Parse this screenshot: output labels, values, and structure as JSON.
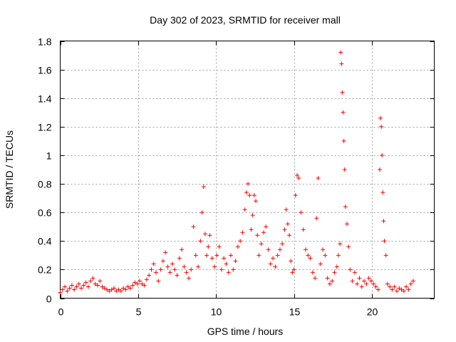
{
  "chart_data": {
    "type": "scatter",
    "title": "Day 302 of 2023, SRMTID for receiver mall",
    "xlabel": "GPS time / hours",
    "ylabel": "SRMTID / TECUs",
    "xlim": [
      0,
      24
    ],
    "ylim": [
      0,
      1.8
    ],
    "xticks": [
      0,
      5,
      10,
      15,
      20
    ],
    "xtick_labels": [
      "0",
      "5",
      "10",
      "15",
      "20"
    ],
    "yticks": [
      0,
      0.2,
      0.4,
      0.6,
      0.8,
      1.0,
      1.2,
      1.4,
      1.6,
      1.8
    ],
    "ytick_labels": [
      "0",
      "0.2",
      "0.4",
      "0.6",
      "0.8",
      "1",
      "1.2",
      "1.4",
      "1.6",
      "1.8"
    ],
    "grid": true,
    "marker": "plus",
    "color": "#ff0000",
    "series": [
      {
        "name": "SRMTID",
        "x": [
          0.0,
          0.15,
          0.3,
          0.45,
          0.6,
          0.75,
          0.9,
          1.05,
          1.2,
          1.35,
          1.5,
          1.65,
          1.8,
          1.95,
          2.1,
          2.25,
          2.4,
          2.55,
          2.7,
          2.85,
          3.0,
          3.15,
          3.3,
          3.45,
          3.6,
          3.75,
          3.9,
          4.05,
          4.2,
          4.35,
          4.5,
          4.65,
          4.8,
          4.95,
          5.1,
          5.25,
          5.4,
          5.55,
          5.7,
          5.85,
          6.0,
          6.15,
          6.3,
          6.45,
          6.6,
          6.75,
          6.9,
          7.05,
          7.2,
          7.35,
          7.5,
          7.65,
          7.8,
          7.95,
          8.1,
          8.25,
          8.4,
          8.55,
          8.7,
          8.85,
          9.0,
          9.1,
          9.2,
          9.3,
          9.4,
          9.5,
          9.6,
          9.75,
          9.9,
          10.05,
          10.2,
          10.35,
          10.5,
          10.65,
          10.8,
          10.95,
          11.1,
          11.25,
          11.4,
          11.55,
          11.7,
          11.85,
          11.95,
          12.05,
          12.15,
          12.25,
          12.35,
          12.45,
          12.55,
          12.65,
          12.75,
          12.9,
          13.05,
          13.2,
          13.35,
          13.5,
          13.65,
          13.8,
          13.95,
          14.1,
          14.25,
          14.4,
          14.5,
          14.6,
          14.7,
          14.8,
          14.9,
          15.0,
          15.1,
          15.2,
          15.3,
          15.45,
          15.6,
          15.75,
          15.9,
          16.05,
          16.2,
          16.35,
          16.45,
          16.55,
          16.7,
          16.85,
          17.0,
          17.15,
          17.3,
          17.45,
          17.6,
          17.75,
          17.85,
          17.95,
          18.0,
          18.05,
          18.1,
          18.15,
          18.2,
          18.25,
          18.3,
          18.4,
          18.5,
          18.6,
          18.75,
          18.9,
          19.05,
          19.2,
          19.35,
          19.5,
          19.65,
          19.8,
          19.95,
          20.1,
          20.25,
          20.4,
          20.5,
          20.55,
          20.6,
          20.65,
          20.7,
          20.75,
          20.8,
          20.9,
          21.0,
          21.15,
          21.3,
          21.45,
          21.6,
          21.75,
          21.9,
          22.05,
          22.2,
          22.35,
          22.5,
          22.65
        ],
        "y": [
          0.04,
          0.06,
          0.08,
          0.05,
          0.07,
          0.09,
          0.06,
          0.08,
          0.1,
          0.07,
          0.09,
          0.11,
          0.08,
          0.12,
          0.14,
          0.1,
          0.09,
          0.12,
          0.08,
          0.07,
          0.06,
          0.05,
          0.06,
          0.07,
          0.05,
          0.06,
          0.05,
          0.07,
          0.06,
          0.08,
          0.07,
          0.09,
          0.11,
          0.1,
          0.12,
          0.1,
          0.09,
          0.13,
          0.16,
          0.2,
          0.24,
          0.18,
          0.12,
          0.2,
          0.26,
          0.32,
          0.22,
          0.18,
          0.24,
          0.2,
          0.16,
          0.28,
          0.34,
          0.22,
          0.18,
          0.14,
          0.2,
          0.5,
          0.3,
          0.22,
          0.4,
          0.6,
          0.78,
          0.45,
          0.3,
          0.36,
          0.44,
          0.28,
          0.22,
          0.3,
          0.36,
          0.2,
          0.28,
          0.24,
          0.18,
          0.3,
          0.2,
          0.26,
          0.36,
          0.4,
          0.46,
          0.62,
          0.74,
          0.8,
          0.72,
          0.48,
          0.58,
          0.72,
          0.68,
          0.44,
          0.3,
          0.38,
          0.46,
          0.5,
          0.34,
          0.24,
          0.28,
          0.22,
          0.3,
          0.34,
          0.38,
          0.48,
          0.62,
          0.52,
          0.44,
          0.26,
          0.18,
          0.2,
          0.72,
          0.86,
          0.84,
          0.6,
          0.48,
          0.34,
          0.3,
          0.28,
          0.18,
          0.14,
          0.56,
          0.84,
          0.24,
          0.34,
          0.3,
          0.14,
          0.1,
          0.12,
          0.18,
          0.22,
          0.3,
          0.38,
          1.72,
          1.64,
          1.44,
          1.3,
          1.1,
          0.9,
          0.64,
          0.52,
          0.36,
          0.2,
          0.12,
          0.18,
          0.1,
          0.14,
          0.08,
          0.12,
          0.1,
          0.14,
          0.12,
          0.1,
          0.08,
          0.06,
          0.9,
          1.26,
          1.2,
          1.0,
          0.74,
          0.54,
          0.4,
          0.3,
          0.1,
          0.08,
          0.06,
          0.08,
          0.05,
          0.07,
          0.06,
          0.05,
          0.08,
          0.06,
          0.1,
          0.12
        ]
      }
    ]
  }
}
